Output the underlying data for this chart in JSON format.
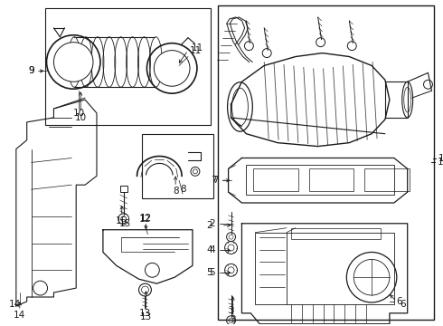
{
  "background_color": "#ffffff",
  "line_color": "#1a1a1a",
  "text_color": "#1a1a1a",
  "fig_width": 4.9,
  "fig_height": 3.6,
  "dpi": 100
}
